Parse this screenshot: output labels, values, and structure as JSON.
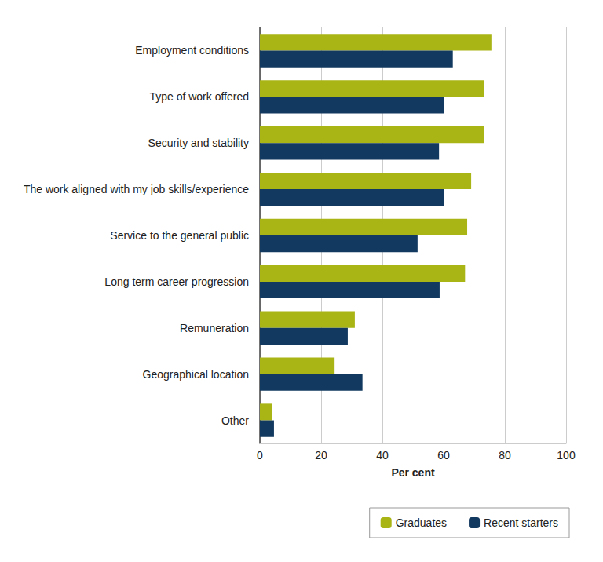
{
  "chart_data": {
    "type": "bar",
    "orientation": "horizontal",
    "categories": [
      "Employment conditions",
      "Type of work offered",
      "Security and stability",
      "The work aligned with my job skills/experience",
      "Service to the general public",
      "Long term career progression",
      "Remuneration",
      "Geographical location",
      "Other"
    ],
    "series": [
      {
        "name": "Graduates",
        "color": "#a9b415",
        "values": [
          75.6,
          73.3,
          73.3,
          69,
          67.7,
          67,
          31,
          24.4,
          3.9
        ]
      },
      {
        "name": "Recent starters",
        "color": "#12395f",
        "values": [
          63,
          60,
          58.5,
          60.2,
          51.5,
          58.7,
          28.7,
          33.5,
          4.6
        ]
      }
    ],
    "x_label": "Per cent",
    "xlim": [
      0,
      100
    ],
    "xticks": [
      0,
      20,
      40,
      60,
      80,
      100
    ],
    "grid": true,
    "legend": "bottom-right"
  }
}
